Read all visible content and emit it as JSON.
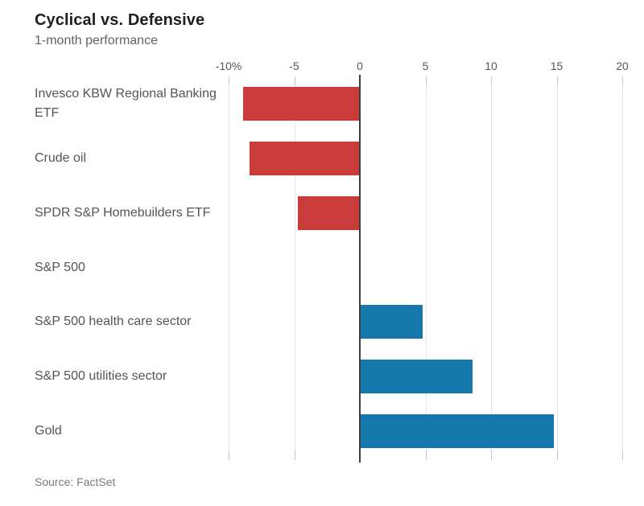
{
  "header": {
    "title": "Cyclical vs. Defensive",
    "subtitle": "1-month performance"
  },
  "footer": {
    "source": "Source: FactSet"
  },
  "chart_data": {
    "type": "bar",
    "orientation": "horizontal",
    "title": "Cyclical vs. Defensive",
    "subtitle": "1-month performance",
    "unit": "%",
    "categories": [
      "Invesco KBW Regional Banking ETF",
      "Crude oil",
      "SPDR S&P Homebuilders ETF",
      "S&P 500",
      "S&P 500 health care sector",
      "S&P 500 utilities sector",
      "Gold"
    ],
    "values": [
      -8.9,
      -8.4,
      -4.7,
      0,
      4.8,
      8.6,
      14.8
    ],
    "x_ticks": [
      -10,
      -5,
      0,
      5,
      10,
      15,
      20
    ],
    "x_tick_labels": [
      "-10%",
      "-5",
      "0",
      "5",
      "10",
      "15",
      "20"
    ],
    "xlim": [
      -10,
      20
    ],
    "grid": true,
    "legend": "none",
    "negative_color": "#c93c39",
    "positive_color": "#1478ac",
    "source": "Source: FactSet"
  }
}
